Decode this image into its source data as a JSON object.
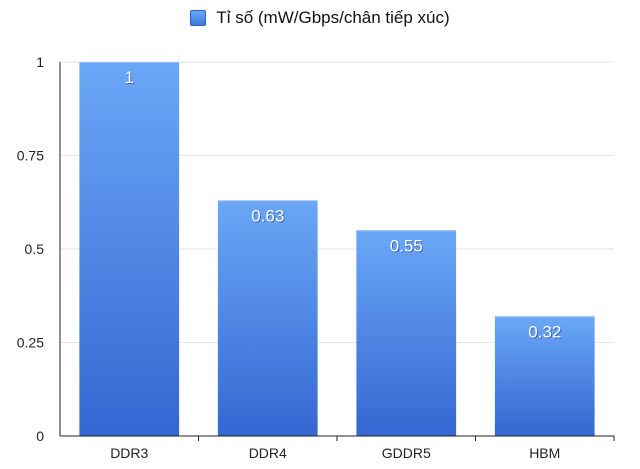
{
  "chart_data": {
    "type": "bar",
    "categories": [
      "DDR3",
      "DDR4",
      "GDDR5",
      "HBM"
    ],
    "series": [
      {
        "name": "Tỉ số (mW/Gbps/chân tiếp xúc)",
        "values": [
          1,
          0.63,
          0.55,
          0.32
        ]
      }
    ],
    "data_labels": [
      "1",
      "0.63",
      "0.55",
      "0.32"
    ],
    "y_ticks": [
      "0",
      "0.25",
      "0.5",
      "0.75",
      "1"
    ],
    "ylim": [
      0,
      1
    ],
    "grid": true,
    "legend_position": "top-center",
    "colors": {
      "bar_top": "#6ba7f6",
      "bar_bottom": "#3467d2",
      "grid": "#e6e6e6",
      "axis": "#222222"
    }
  }
}
